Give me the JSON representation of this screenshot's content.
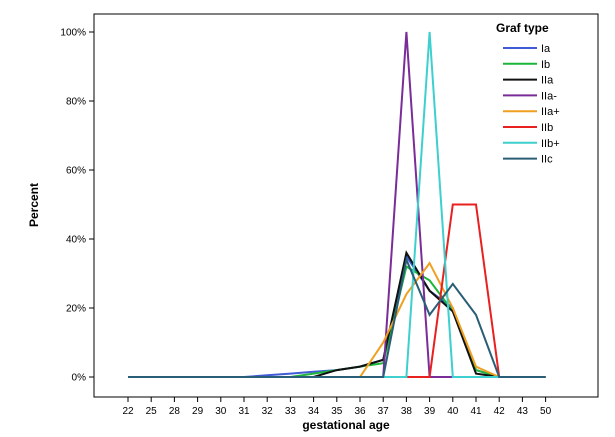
{
  "chart_data": {
    "type": "line",
    "xlabel": "gestational age",
    "ylabel": "Percent",
    "ylim": [
      0,
      100
    ],
    "yticks": [
      0,
      20,
      40,
      60,
      80,
      100
    ],
    "ytick_labels": [
      "0%",
      "20%",
      "40%",
      "60%",
      "80%",
      "100%"
    ],
    "categories": [
      "22",
      "25",
      "28",
      "29",
      "30",
      "31",
      "32",
      "33",
      "34",
      "35",
      "36",
      "37",
      "38",
      "39",
      "40",
      "41",
      "42",
      "43",
      "50"
    ],
    "grid": false,
    "legend": {
      "title": "Graf type",
      "position": "top-right"
    },
    "series": [
      {
        "name": "Ia",
        "color": "#3f5bd6",
        "values": [
          0,
          0,
          0,
          0,
          0,
          0,
          0.5,
          1,
          1.5,
          2,
          3,
          5,
          35,
          25,
          20,
          2,
          0,
          0,
          0
        ]
      },
      {
        "name": "Ib",
        "color": "#1fb53a",
        "values": [
          0,
          0,
          0,
          0,
          0,
          0,
          0,
          0,
          1,
          2,
          3,
          4,
          32,
          28,
          19,
          2,
          0,
          0,
          0
        ]
      },
      {
        "name": "IIa",
        "color": "#111111",
        "values": [
          0,
          0,
          0,
          0,
          0,
          0,
          0,
          0,
          0,
          2,
          3,
          5,
          36,
          25,
          19,
          1,
          0,
          0,
          0
        ]
      },
      {
        "name": "IIa-",
        "color": "#7a2d98",
        "values": [
          0,
          0,
          0,
          0,
          0,
          0,
          0,
          0,
          0,
          0,
          0,
          0,
          100,
          0,
          0,
          0,
          0,
          0,
          0
        ]
      },
      {
        "name": "IIa+",
        "color": "#f0a020",
        "values": [
          0,
          0,
          0,
          0,
          0,
          0,
          0,
          0,
          0,
          0,
          0,
          10,
          24,
          33,
          20,
          3,
          0,
          0,
          0
        ]
      },
      {
        "name": "IIb",
        "color": "#e8201f",
        "values": [
          0,
          0,
          0,
          0,
          0,
          0,
          0,
          0,
          0,
          0,
          0,
          0,
          0,
          0,
          50,
          50,
          0,
          0,
          0
        ]
      },
      {
        "name": "IIb+",
        "color": "#3ecfcf",
        "values": [
          0,
          0,
          0,
          0,
          0,
          0,
          0,
          0,
          0,
          0,
          0,
          0,
          0,
          100,
          0,
          0,
          0,
          0,
          0
        ]
      },
      {
        "name": "IIc",
        "color": "#2a5e77",
        "values": [
          0,
          0,
          0,
          0,
          0,
          0,
          0,
          0,
          0,
          0,
          0,
          0,
          34,
          18,
          27,
          18,
          0,
          0,
          0
        ]
      }
    ]
  }
}
